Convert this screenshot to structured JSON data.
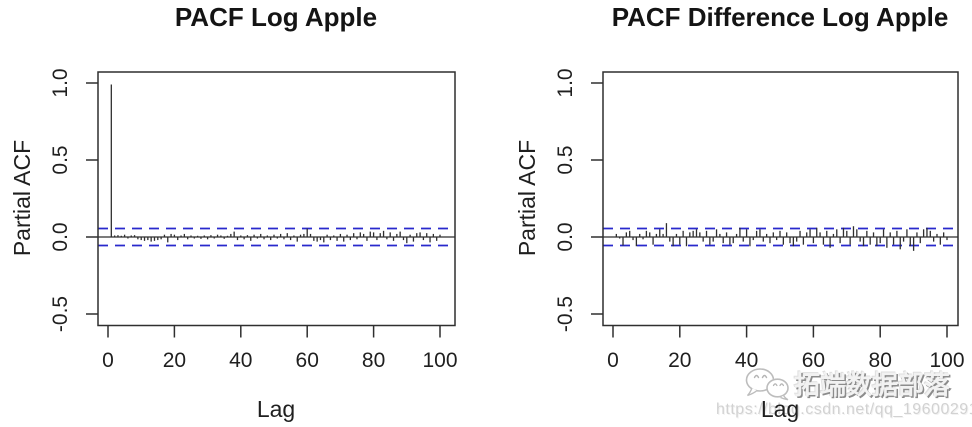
{
  "page": {
    "background": "#ffffff"
  },
  "watermark": {
    "icon": "wechat-icon",
    "text": "拓端数据部落",
    "url": "https://blog.csdn.net/qq_19600291"
  },
  "chart_data": [
    {
      "type": "bar",
      "title": "PACF Log Apple",
      "xlabel": "Lag",
      "ylabel": "Partial ACF",
      "xlim": [
        0,
        100
      ],
      "ylim": [
        -0.5,
        1.0
      ],
      "grid": false,
      "legend": "none",
      "xtick_values": [
        0,
        20,
        40,
        60,
        80,
        100
      ],
      "xtick_labels": [
        "0",
        "20",
        "40",
        "60",
        "80",
        "100"
      ],
      "ytick_values": [
        -0.5,
        0.0,
        0.5,
        1.0
      ],
      "ytick_labels": [
        "-0.5",
        "0.0",
        "0.5",
        "1.0"
      ],
      "conf_band": 0.055,
      "conf_color": "#2929cc",
      "bar_color": "#2f2f2f",
      "lag_start": 1,
      "values": [
        0.99,
        0.01,
        0.012,
        0.008,
        0.015,
        -0.01,
        0.01,
        0.012,
        -0.015,
        -0.02,
        -0.025,
        -0.02,
        -0.03,
        -0.025,
        -0.02,
        -0.015,
        0.015,
        -0.035,
        0.02,
        0.015,
        -0.02,
        0.01,
        0.02,
        -0.015,
        0.01,
        -0.01,
        0.008,
        -0.012,
        0.01,
        -0.015,
        0.012,
        -0.01,
        0.015,
        0.01,
        -0.012,
        0.008,
        0.02,
        0.035,
        -0.02,
        0.01,
        -0.015,
        0.012,
        -0.025,
        0.015,
        -0.01,
        0.02,
        -0.015,
        0.01,
        -0.02,
        0.015,
        -0.01,
        0.02,
        -0.015,
        0.025,
        -0.02,
        0.01,
        -0.03,
        0.015,
        0.02,
        0.055,
        0.02,
        -0.025,
        -0.03,
        -0.02,
        -0.035,
        0.015,
        -0.02,
        0.01,
        -0.025,
        0.02,
        -0.03,
        0.015,
        -0.02,
        0.025,
        -0.015,
        0.03,
        0.02,
        -0.025,
        0.035,
        0.03,
        -0.02,
        0.025,
        0.04,
        -0.015,
        0.03,
        -0.025,
        0.02,
        0.035,
        -0.02,
        -0.04,
        0.015,
        -0.03,
        0.025,
        0.03,
        -0.02,
        0.025,
        -0.035,
        0.02,
        -0.025,
        0.015
      ]
    },
    {
      "type": "bar",
      "title": "PACF Difference Log Apple",
      "xlabel": "Lag",
      "ylabel": "Partial ACF",
      "xlim": [
        0,
        100
      ],
      "ylim": [
        -0.5,
        1.0
      ],
      "grid": false,
      "legend": "none",
      "xtick_values": [
        0,
        20,
        40,
        60,
        80,
        100
      ],
      "xtick_labels": [
        "0",
        "20",
        "40",
        "60",
        "80",
        "100"
      ],
      "ytick_values": [
        -0.5,
        0.0,
        0.5,
        1.0
      ],
      "ytick_labels": [
        "-0.5",
        "0.0",
        "0.5",
        "1.0"
      ],
      "conf_band": 0.055,
      "conf_color": "#2929cc",
      "bar_color": "#2f2f2f",
      "lag_start": 1,
      "values": [
        0.02,
        -0.01,
        -0.055,
        0.03,
        0.04,
        -0.02,
        -0.06,
        0.02,
        -0.015,
        0.04,
        0.03,
        -0.05,
        0.02,
        0.05,
        0.02,
        0.09,
        -0.03,
        -0.06,
        0.02,
        -0.05,
        0.04,
        -0.06,
        0.03,
        0.04,
        0.05,
        0.03,
        -0.03,
        0.04,
        -0.05,
        -0.03,
        0.05,
        0.02,
        -0.04,
        0.03,
        -0.05,
        -0.04,
        0.02,
        0.06,
        -0.03,
        0.05,
        -0.06,
        -0.02,
        0.04,
        0.05,
        -0.03,
        0.02,
        -0.04,
        0.03,
        -0.02,
        0.04,
        -0.05,
        0.03,
        -0.04,
        -0.06,
        -0.03,
        0.04,
        -0.05,
        0.03,
        0.05,
        -0.04,
        0.06,
        0.03,
        -0.05,
        0.04,
        -0.07,
        0.02,
        0.05,
        -0.04,
        0.06,
        0.04,
        -0.05,
        0.07,
        0.05,
        -0.03,
        -0.06,
        0.04,
        -0.05,
        0.03,
        -0.06,
        -0.04,
        0.05,
        -0.07,
        0.03,
        -0.05,
        0.04,
        -0.08,
        -0.03,
        0.05,
        -0.06,
        -0.09,
        0.03,
        -0.04,
        0.05,
        0.06,
        0.04,
        -0.03,
        0.02,
        -0.05,
        0.03,
        -0.02
      ]
    }
  ]
}
